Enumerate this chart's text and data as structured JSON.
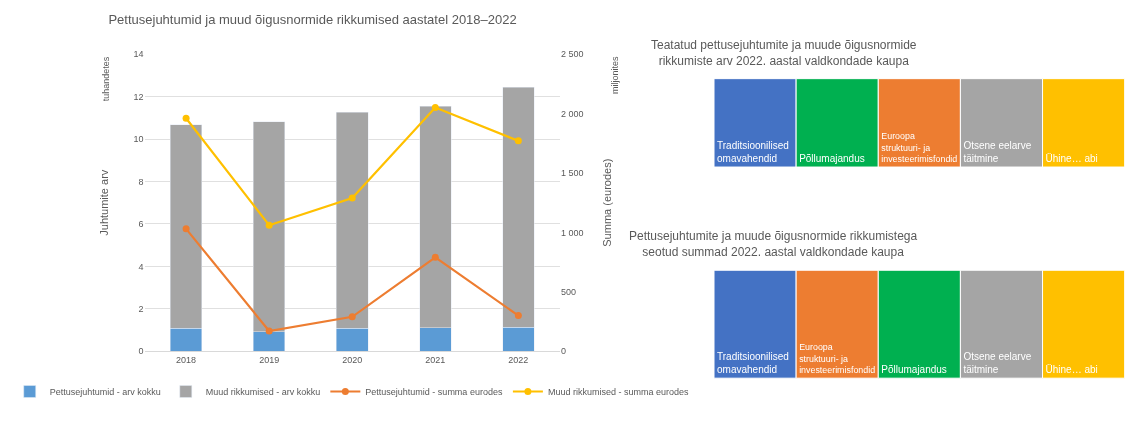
{
  "chart_data": [
    {
      "type": "bar",
      "title": "Pettusejuhtumid ja muud õigusnormide rikkumised aastatel 2018–2022",
      "ylabel": "Juhtumite arv",
      "y2label": "Summa (eurodes)",
      "annotations": [
        "tuhandetes",
        "miljonites"
      ],
      "categories": [
        "2018",
        "2019",
        "2020",
        "2021",
        "2022"
      ],
      "stacked": true,
      "series": [
        {
          "name": "Pettusejuhtumid - arv kokku",
          "color": "#5b9bd5",
          "values": [
            1.08,
            0.91,
            1.08,
            1.11,
            1.14
          ]
        },
        {
          "name": "Muud rikkumised - arv kokku",
          "color": "#a5a5a5",
          "values": [
            9.59,
            9.91,
            10.19,
            10.44,
            11.29
          ]
        },
        {
          "name": "Pettusejuhtumid - summa eurodes",
          "type": "line",
          "axis": "y2",
          "color": "#ed7d31",
          "marker": "circle",
          "values": [
            1030,
            170,
            290,
            790,
            300
          ]
        },
        {
          "name": "Muud rikkumised - summa eurodes",
          "type": "line",
          "axis": "y2",
          "color": "#ffc000",
          "marker": "circle",
          "values": [
            1960,
            1060,
            1290,
            2050,
            1770
          ]
        }
      ],
      "ylim": [
        0,
        14
      ],
      "yticks": [
        0,
        2,
        4,
        6,
        8,
        10,
        12,
        14
      ],
      "y2lim": [
        0,
        2500
      ],
      "y2ticks": [
        0,
        500,
        {
          "value": 1000,
          "label": "1 000"
        },
        {
          "value": 1500,
          "label": "1 500"
        },
        {
          "value": 2000,
          "label": "2 000"
        },
        {
          "value": 2500,
          "label": "2 500"
        }
      ],
      "grid": "y",
      "legend": "bottom"
    },
    {
      "type": "other",
      "title": "Teatatud pettusejuhtumite ja muude õigusnormide rikkumiste arv 2022. aastal valdkondade kaupa",
      "categories": [
        "Traditsioonilised omavahendid",
        "Põllumajandus",
        "Euroopa struktuuri- ja investeerimisfondid",
        "Otsene eelarve täitmine",
        "Ühine… abi"
      ],
      "colors": [
        "#4472c4",
        "#00b050",
        "#ed7d31",
        "#a5a5a5",
        "#ffc000"
      ]
    },
    {
      "type": "other",
      "title": "Pettusejuhtumite ja muude õigusnormide rikkumistega seotud summad 2022. aastal valdkondade kaupa",
      "categories": [
        "Traditsioonilised omavahendid",
        "Euroopa struktuuri- ja investeerimisfondid",
        "Põllumajandus",
        "Otsene eelarve täitmine",
        "Ühine… abi"
      ],
      "colors": [
        "#4472c4",
        "#ed7d31",
        "#00b050",
        "#a5a5a5",
        "#ffc000"
      ]
    }
  ]
}
